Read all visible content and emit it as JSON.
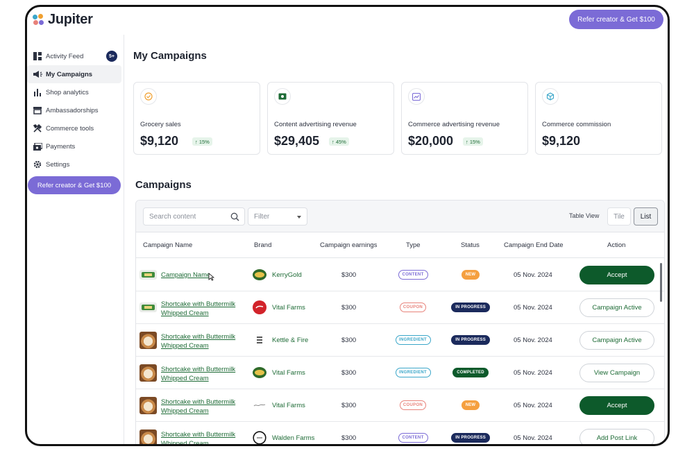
{
  "app": {
    "name": "Jupiter",
    "refer_label": "Refer creator & Get $100"
  },
  "sidebar": {
    "items": [
      {
        "label": "Activity Feed",
        "icon": "dashboard-icon",
        "badge": "5+"
      },
      {
        "label": "My Campaigns",
        "icon": "megaphone-icon",
        "active": true
      },
      {
        "label": "Shop analytics",
        "icon": "bar-chart-icon"
      },
      {
        "label": "Ambassadorships",
        "icon": "store-icon"
      },
      {
        "label": "Commerce tools",
        "icon": "tools-icon"
      },
      {
        "label": "Payments",
        "icon": "payments-icon"
      },
      {
        "label": "Settings",
        "icon": "gear-icon"
      }
    ],
    "refer_label": "Refer creator & Get $100"
  },
  "page": {
    "title": "My Campaigns"
  },
  "kpis": [
    {
      "label": "Grocery sales",
      "value": "$9,120",
      "delta": "↑ 15%",
      "icon": "check-circle-icon",
      "color": "#f0a030"
    },
    {
      "label": "Content advertising revenue",
      "value": "$29,405",
      "delta": "↑ 45%",
      "icon": "cash-icon",
      "color": "#1e6b36"
    },
    {
      "label": "Commerce advertising revenue",
      "value": "$20,000",
      "delta": "↑ 15%",
      "icon": "trend-chart-icon",
      "color": "#7b6bd6"
    },
    {
      "label": "Commerce commission",
      "value": "$9,120",
      "delta": "",
      "icon": "cube-icon",
      "color": "#3aa6c9"
    }
  ],
  "campaigns": {
    "title": "Campaigns",
    "search_placeholder": "Search content",
    "filter_label": "Filter",
    "view_label": "Table View",
    "view_tile": "Tile",
    "view_list": "List",
    "columns": [
      "Campaign Name",
      "Brand",
      "Campaign earnings",
      "Type",
      "Status",
      "Campaign End Date",
      "Action"
    ],
    "rows": [
      {
        "name": "Campaign Name",
        "thumb": "label",
        "brand": "KerryGold",
        "brand_logo": "kerrygold",
        "earnings": "$300",
        "type": "CONTENT",
        "status": "NEW",
        "end_date": "05 Nov. 2024",
        "action": "Accept",
        "action_style": "primary"
      },
      {
        "name": "Shortcake with Buttermilk Whipped Cream",
        "thumb": "label",
        "brand": "Vital Farms",
        "brand_logo": "vital",
        "earnings": "$300",
        "type": "COUPON",
        "status": "IN PROGRESS",
        "end_date": "05 Nov. 2024",
        "action": "Campaign Active",
        "action_style": "secondary"
      },
      {
        "name": "Shortcake with Buttermilk Whipped Cream",
        "thumb": "cake",
        "brand": "Kettle & Fire",
        "brand_logo": "kettle",
        "earnings": "$300",
        "type": "INGREDIENT",
        "status": "IN PROGRESS",
        "end_date": "05 Nov. 2024",
        "action": "Campaign Active",
        "action_style": "secondary"
      },
      {
        "name": "Shortcake with Buttermilk Whipped Cream",
        "thumb": "cake",
        "brand": "Vital Farms",
        "brand_logo": "kerrygold",
        "earnings": "$300",
        "type": "INGREDIENT",
        "status": "COMPLETED",
        "end_date": "05 Nov. 2024",
        "action": "View Campaign",
        "action_style": "secondary"
      },
      {
        "name": "Shortcake with Buttermilk Whipped Cream",
        "thumb": "cake",
        "brand": "Vital Farms",
        "brand_logo": "script",
        "earnings": "$300",
        "type": "COUPON",
        "status": "NEW",
        "end_date": "05 Nov. 2024",
        "action": "Accept",
        "action_style": "primary"
      },
      {
        "name": "Shortcake with Buttermilk Whipped Cream",
        "thumb": "cake",
        "brand": "Walden Farms",
        "brand_logo": "walden",
        "earnings": "$300",
        "type": "CONTENT",
        "status": "IN PROGRESS",
        "end_date": "05 Nov. 2024",
        "action": "Add Post Link",
        "action_style": "secondary"
      }
    ]
  },
  "colors": {
    "accent_purple": "#7b6bd6",
    "brand_green": "#1e6b36",
    "navy": "#1b2a5c",
    "status_new": "#f5a040",
    "status_in_progress": "#1b2a5c",
    "status_completed": "#0d5a2b",
    "type_content": "#7b6bd6",
    "type_coupon": "#e8827a",
    "type_ingredient": "#3aa6c9"
  }
}
